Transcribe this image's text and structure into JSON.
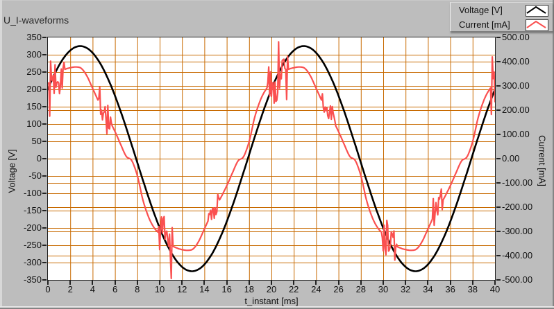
{
  "window": {
    "title": "U_I-waveforms"
  },
  "legend": {
    "items": [
      {
        "label": "Voltage [V]",
        "color": "#000000"
      },
      {
        "label": "Current [mA]",
        "color": "#fa5050"
      }
    ]
  },
  "chart_data": {
    "type": "line",
    "title": "U_I-waveforms",
    "xlabel": "t_instant [ms]",
    "x_range": [
      0,
      40
    ],
    "x_tick_step": 2,
    "x_ticks": [
      "0",
      "2",
      "4",
      "6",
      "8",
      "10",
      "12",
      "14",
      "16",
      "18",
      "20",
      "22",
      "24",
      "26",
      "28",
      "30",
      "32",
      "34",
      "36",
      "38",
      "40"
    ],
    "left_axis": {
      "label": "Voltage [V]",
      "range": [
        -350,
        350
      ],
      "tick_step": 50,
      "ticks": [
        "350",
        "300",
        "250",
        "200",
        "150",
        "100",
        "50",
        "0",
        "-50",
        "-100",
        "-150",
        "-200",
        "-250",
        "-300",
        "-350"
      ]
    },
    "right_axis": {
      "label": "Current [mA]",
      "range": [
        -500,
        500
      ],
      "tick_step": 100,
      "ticks": [
        "500.00",
        "400.00",
        "300.00",
        "200.00",
        "100.00",
        "0.00",
        "-100.00",
        "-200.00",
        "-300.00",
        "-400.00",
        "-500.00"
      ]
    },
    "grid": true,
    "grid_color": "#c86a00",
    "plot_bg": "#ffffff",
    "legend_position": "top-right",
    "key_values": {
      "voltage_amplitude_v": 325,
      "voltage_at_t0_v": 200,
      "voltage_peak_time_ms": 2.9,
      "current_peak_ma": 380,
      "period_ms": 20
    },
    "series": [
      {
        "name": "Voltage [V]",
        "axis": "left",
        "color": "#000000",
        "width": 2.6,
        "model": {
          "kind": "sine",
          "amplitude": 325,
          "period_ms": 20,
          "phase_deg": 38
        }
      },
      {
        "name": "Current [mA]",
        "axis": "right",
        "color": "#fa5050",
        "width": 2.2,
        "anchors_t_ms": [
          0,
          0.5,
          1,
          1.5,
          2,
          2.5,
          3,
          3.5,
          4,
          4.5,
          5,
          5.5,
          6,
          6.5,
          7,
          7.5,
          8,
          8.5,
          9,
          9.5,
          10,
          10.5,
          11,
          11.5,
          12,
          12.5,
          13,
          13.5,
          14,
          14.5,
          15,
          15.5,
          16,
          16.5,
          17,
          17.5,
          18,
          18.5,
          19,
          19.5,
          20
        ],
        "anchors_ma": [
          310,
          336,
          356,
          368,
          375,
          378,
          372,
          340,
          290,
          240,
          200,
          158,
          112,
          60,
          10,
          -8,
          -70,
          -170,
          -240,
          -285,
          -310,
          -336,
          -356,
          -368,
          -375,
          -378,
          -372,
          -340,
          -290,
          -240,
          -200,
          -158,
          -112,
          -60,
          -10,
          8,
          70,
          170,
          240,
          285,
          310
        ],
        "repeat_period_ms": 20,
        "noise_bursts_ms": [
          [
            0.15,
            1.5
          ],
          [
            4.5,
            5.7
          ],
          [
            9.9,
            11.2
          ],
          [
            14.4,
            15.3
          ],
          [
            19.6,
            20.0
          ]
        ],
        "noise_peaks_ma": [
          85,
          60,
          85,
          50,
          85
        ]
      }
    ]
  }
}
